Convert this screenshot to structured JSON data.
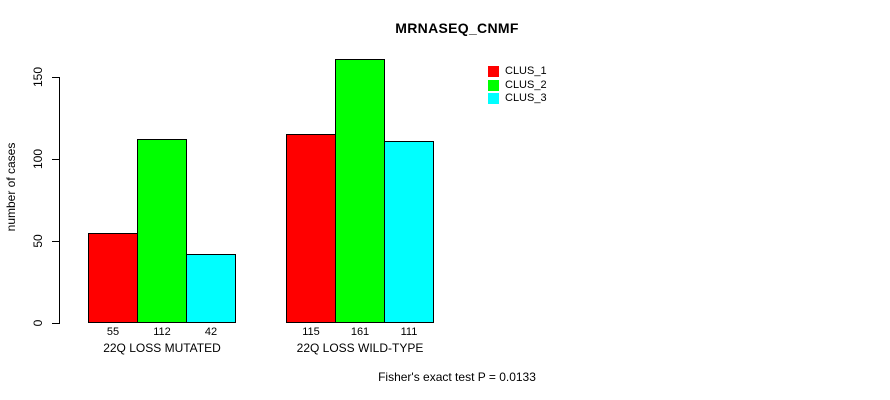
{
  "title": "MRNASEQ_CNMF",
  "footer": {
    "stat_text": "Fisher's exact test P = 0.0133"
  },
  "chart_data": {
    "type": "bar",
    "title": "MRNASEQ_CNMF",
    "categories": [
      "22Q LOSS MUTATED",
      "22Q LOSS WILD-TYPE"
    ],
    "series": [
      {
        "name": "CLUS_1",
        "color": "#ff0000",
        "values": [
          55,
          115
        ]
      },
      {
        "name": "CLUS_2",
        "color": "#00ff00",
        "values": [
          112,
          161
        ]
      },
      {
        "name": "CLUS_3",
        "color": "#00ffff",
        "values": [
          42,
          111
        ]
      }
    ],
    "xlabel": "",
    "ylabel": "number of cases",
    "ylim": [
      0,
      150
    ],
    "yticks": [
      0,
      50,
      100,
      150
    ],
    "bar_value_labels": [
      [
        55,
        112,
        42
      ],
      [
        115,
        161,
        111
      ]
    ],
    "legend_position": "top-right",
    "grid": false,
    "annotation": "Fisher's exact test P = 0.0133"
  }
}
